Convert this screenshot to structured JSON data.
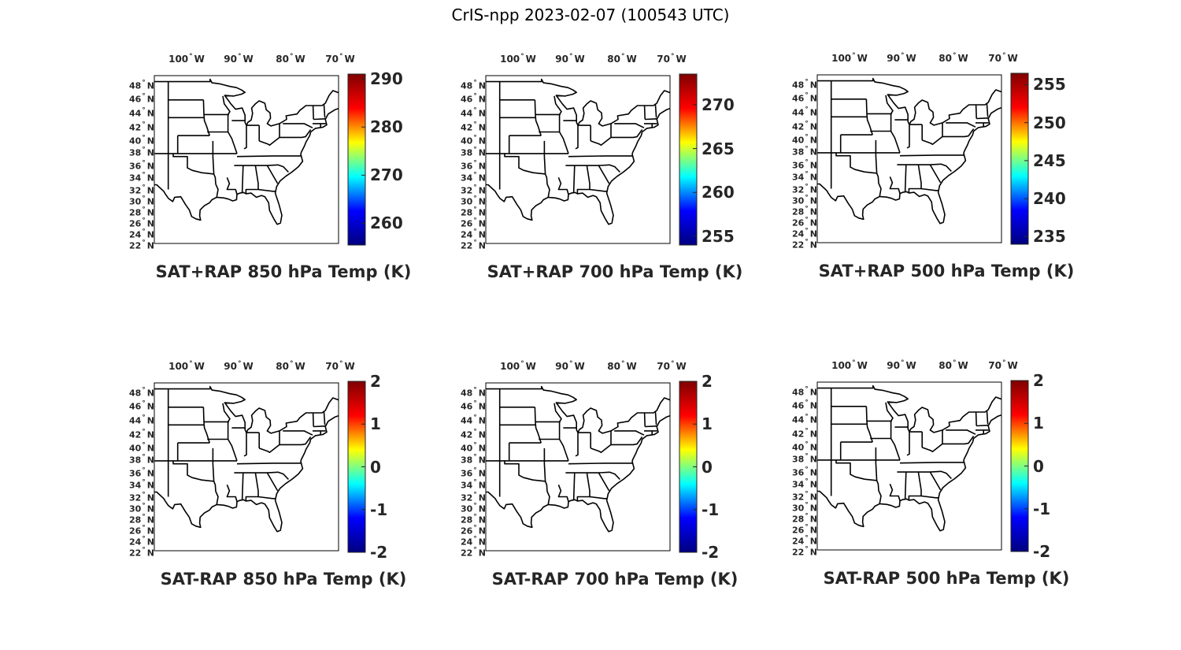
{
  "figure": {
    "title": "CrIS-npp 2023-02-07 (100543 UTC)"
  },
  "axes_labels": {
    "lon": [
      "100",
      "90",
      "80",
      "70"
    ],
    "lon_suffix": "W",
    "lat": [
      "48",
      "46",
      "44",
      "42",
      "40",
      "38",
      "36",
      "34",
      "32",
      "30",
      "28",
      "26",
      "24",
      "22"
    ],
    "lat_suffix": "N",
    "degree_symbol": "°"
  },
  "map": {
    "projection": "equidistant",
    "lon_range": [
      -107,
      -68
    ],
    "lat_range": [
      22,
      50
    ],
    "background": "#ffffff",
    "boundary_color": "#000000",
    "features": [
      "coastlines",
      "US state boundaries"
    ]
  },
  "colormap": {
    "name": "jet",
    "stops": [
      "#00007f",
      "#0000ff",
      "#00ffff",
      "#ffff00",
      "#ff0000",
      "#7f0000"
    ]
  },
  "panels": [
    {
      "title": "SAT+RAP 850 hPa Temp (K)",
      "colorbar": {
        "min": 255.5,
        "max": 291,
        "ticks": [
          "290",
          "280",
          "270",
          "260"
        ]
      }
    },
    {
      "title": "SAT+RAP 700 hPa Temp (K)",
      "colorbar": {
        "min": 254,
        "max": 273.5,
        "ticks": [
          "270",
          "265",
          "260",
          "255"
        ]
      }
    },
    {
      "title": "SAT+RAP 500 hPa Temp (K)",
      "colorbar": {
        "min": 234,
        "max": 256.5,
        "ticks": [
          "255",
          "250",
          "245",
          "240",
          "235"
        ]
      }
    },
    {
      "title": "SAT-RAP 850 hPa Temp (K)",
      "colorbar": {
        "min": -2,
        "max": 2,
        "ticks": [
          "2",
          "1",
          "0",
          "-1",
          "-2"
        ]
      }
    },
    {
      "title": "SAT-RAP 700 hPa Temp (K)",
      "colorbar": {
        "min": -2,
        "max": 2,
        "ticks": [
          "2",
          "1",
          "0",
          "-1",
          "-2"
        ]
      }
    },
    {
      "title": "SAT-RAP 500 hPa Temp (K)",
      "colorbar": {
        "min": -2,
        "max": 2,
        "ticks": [
          "2",
          "1",
          "0",
          "-1",
          "-2"
        ]
      }
    }
  ]
}
